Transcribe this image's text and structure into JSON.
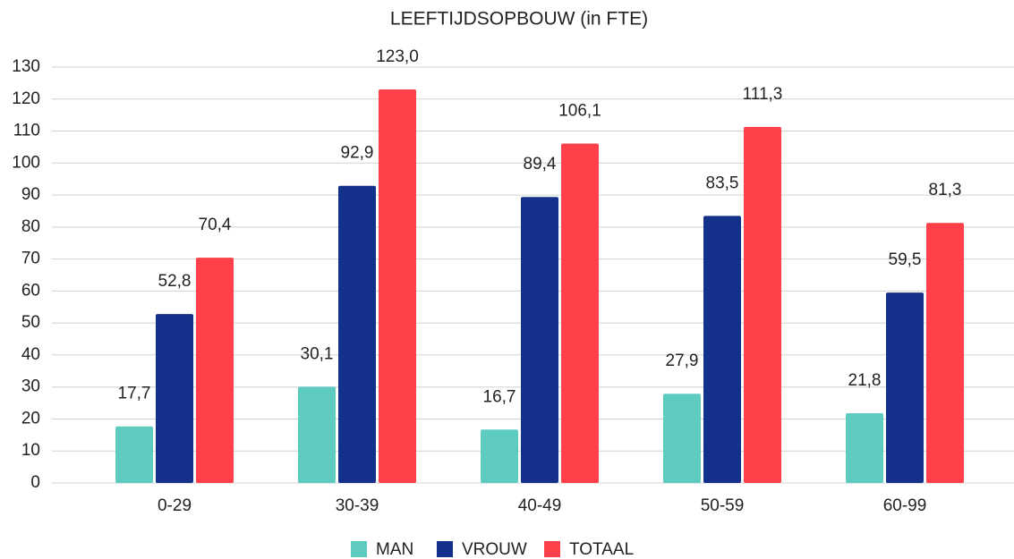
{
  "chart_data": {
    "type": "bar",
    "title": "LEEFTIJDSOPBOUW (in FTE)",
    "categories": [
      "0-29",
      "30-39",
      "40-49",
      "50-59",
      "60-99"
    ],
    "series": [
      {
        "name": "MAN",
        "color": "#5ecbc0",
        "values": [
          17.7,
          30.1,
          16.7,
          27.9,
          21.8
        ],
        "value_labels": [
          "17,7",
          "30,1",
          "16,7",
          "27,9",
          "21,8"
        ]
      },
      {
        "name": "VROUW",
        "color": "#13308a",
        "values": [
          52.8,
          92.9,
          89.4,
          83.5,
          59.5
        ],
        "value_labels": [
          "52,8",
          "92,9",
          "89,4",
          "83,5",
          "59,5"
        ]
      },
      {
        "name": "TOTAAL",
        "color": "#fd4049",
        "values": [
          70.4,
          123.0,
          106.1,
          111.3,
          81.3
        ],
        "value_labels": [
          "70,4",
          "123,0",
          "106,1",
          "111,3",
          "81,3"
        ]
      }
    ],
    "ylim": [
      0,
      130
    ],
    "yticks": [
      0,
      10,
      20,
      30,
      40,
      50,
      60,
      70,
      80,
      90,
      100,
      110,
      120,
      130
    ],
    "grid": true,
    "legend": "bottom"
  }
}
